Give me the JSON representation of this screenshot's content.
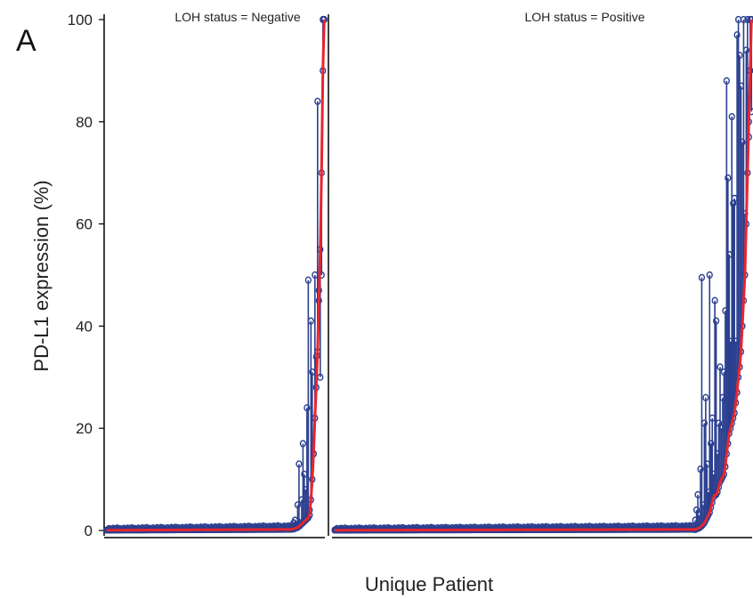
{
  "panel_label": "A",
  "colors": {
    "stem": "#2b3f8f",
    "median_line": "#e8252f",
    "axis": "#000000"
  },
  "chart_data": {
    "type": "scatter",
    "description_type": "lollipop",
    "xlabel": "Unique Patient",
    "ylabel": "PD-L1 expression (%)",
    "ylim": [
      0,
      100
    ],
    "yticks": [
      0,
      20,
      40,
      60,
      80,
      100
    ],
    "grid": false,
    "panels": [
      {
        "label": "LOH status = Negative",
        "patients": 165,
        "tail_min": [
          0.3,
          0.3,
          0.4,
          0.5,
          0.6,
          0.8,
          1.0,
          1.3,
          1.5,
          1.8,
          2.0,
          2.3,
          2.5,
          3.0,
          6.0,
          10.0,
          15.0,
          22.0,
          28.0,
          35.0,
          45.0,
          55.0,
          70.0,
          90.0,
          100.0
        ],
        "tail_max": [
          1.0,
          1.5,
          2.0,
          0.8,
          5.0,
          13.0,
          1.5,
          6.0,
          17.0,
          11.0,
          8.0,
          24.0,
          49.0,
          4.0,
          41.0,
          31.0,
          15.0,
          50.0,
          34.0,
          84.0,
          47.0,
          30.0,
          50.0,
          100.0,
          100.0
        ]
      },
      {
        "label": "LOH status = Positive",
        "patients": 320,
        "tail_min": [
          0.2,
          0.3,
          0.4,
          0.5,
          0.7,
          0.9,
          1.2,
          1.5,
          2.0,
          2.5,
          3.0,
          3.5,
          4.5,
          5.5,
          6.5,
          7.0,
          7.0,
          7.5,
          8.5,
          9.5,
          10.0,
          10.5,
          11.0,
          12.5,
          15.0,
          17.0,
          19.0,
          20.0,
          21.0,
          22.0,
          23.0,
          25.0,
          27.0,
          30.0,
          32.0,
          35.0,
          40.0,
          45.0,
          50.0,
          60.0,
          70.0,
          80.0,
          90.0,
          100.0
        ],
        "tail_max": [
          2.0,
          4.0,
          7.0,
          3.0,
          12.0,
          49.5,
          5.0,
          21.0,
          26.0,
          13.0,
          7.5,
          50.0,
          17.0,
          22.0,
          11.0,
          45.0,
          41.0,
          15.0,
          21.0,
          32.0,
          20.0,
          26.0,
          31.0,
          43.0,
          88.0,
          69.0,
          54.0,
          37.0,
          81.0,
          64.0,
          65.0,
          37.0,
          97.0,
          100.0,
          93.0,
          87.0,
          76.0,
          100.0,
          62.0,
          94.0,
          100.0,
          77.0,
          100.0,
          82.0
        ]
      }
    ]
  }
}
